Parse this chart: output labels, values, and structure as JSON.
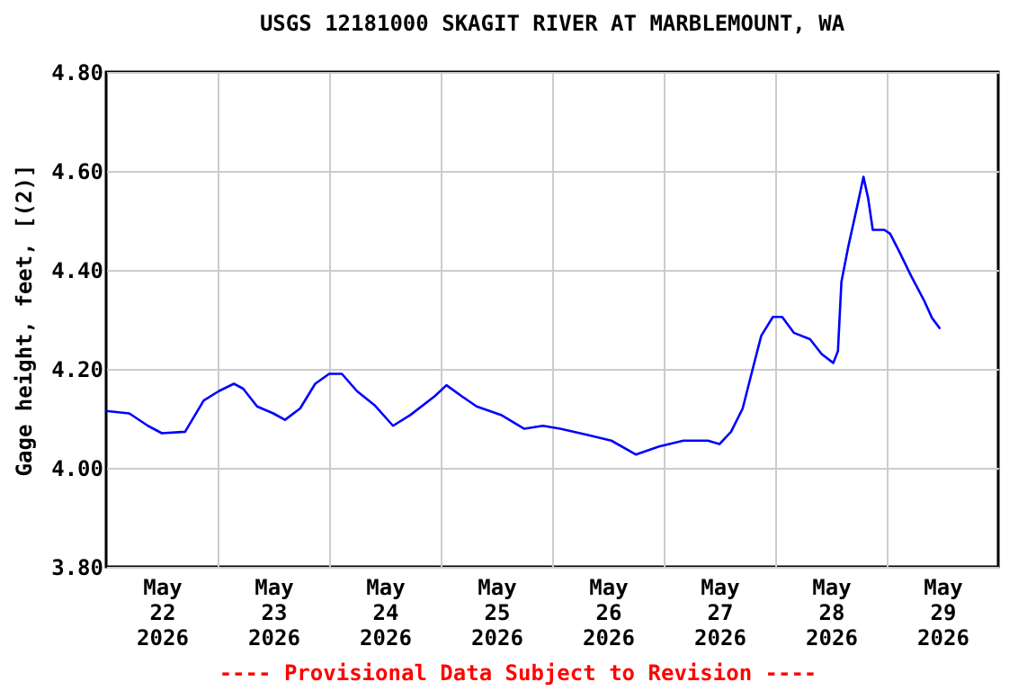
{
  "chart_data": {
    "type": "line",
    "title": "USGS 12181000 SKAGIT RIVER AT MARBLEMOUNT, WA",
    "ylabel": "Gage height, feet, [(2)]",
    "annotations": [
      "---- Provisional Data Subject to Revision ----"
    ],
    "xlim": [
      "2026-05-22T00:00",
      "2026-05-30T00:00"
    ],
    "xticks": [
      {
        "value": "2026-05-22T12:00",
        "label": "May 22 2026"
      },
      {
        "value": "2026-05-23T12:00",
        "label": "May 23 2026"
      },
      {
        "value": "2026-05-24T12:00",
        "label": "May 24 2026"
      },
      {
        "value": "2026-05-25T12:00",
        "label": "May 25 2026"
      },
      {
        "value": "2026-05-26T12:00",
        "label": "May 26 2026"
      },
      {
        "value": "2026-05-27T12:00",
        "label": "May 27 2026"
      },
      {
        "value": "2026-05-28T12:00",
        "label": "May 28 2026"
      },
      {
        "value": "2026-05-29T12:00",
        "label": "May 29 2026"
      },
      {
        "value": "2026-05-23T00:00",
        "label": null
      },
      {
        "value": "2026-05-24T00:00",
        "label": null
      },
      {
        "value": "2026-05-25T00:00",
        "label": null
      },
      {
        "value": "2026-05-26T00:00",
        "label": null
      },
      {
        "value": "2026-05-27T00:00",
        "label": null
      },
      {
        "value": "2026-05-28T00:00",
        "label": null
      },
      {
        "value": "2026-05-29T00:00",
        "label": null
      }
    ],
    "ylim": [
      3.8,
      4.8
    ],
    "yticks": [
      {
        "value": 3.8,
        "label": "3.80"
      },
      {
        "value": 4.0,
        "label": "4.00"
      },
      {
        "value": 4.2,
        "label": "4.20"
      },
      {
        "value": 4.4,
        "label": "4.40"
      },
      {
        "value": 4.6,
        "label": "4.60"
      },
      {
        "value": 4.8,
        "label": "4.80"
      }
    ],
    "grid": true,
    "marker": "none",
    "line_style": "solid",
    "series": [
      {
        "color": "#0000ff",
        "x": [
          "2026-05-22T00:00",
          "2026-05-22T05:00",
          "2026-05-22T09:00",
          "2026-05-22T12:00",
          "2026-05-22T17:00",
          "2026-05-22T21:00",
          "2026-05-23T00:15",
          "2026-05-23T03:30",
          "2026-05-23T05:30",
          "2026-05-23T08:30",
          "2026-05-23T12:00",
          "2026-05-23T14:30",
          "2026-05-23T17:45",
          "2026-05-23T21:00",
          "2026-05-24T00:00",
          "2026-05-24T02:45",
          "2026-05-24T06:00",
          "2026-05-24T09:45",
          "2026-05-24T13:45",
          "2026-05-24T17:30",
          "2026-05-24T22:45",
          "2026-05-25T01:15",
          "2026-05-25T04:30",
          "2026-05-25T07:45",
          "2026-05-25T13:00",
          "2026-05-25T18:00",
          "2026-05-25T22:00",
          "2026-05-26T01:45",
          "2026-05-26T07:30",
          "2026-05-26T12:45",
          "2026-05-26T18:00",
          "2026-05-26T23:00",
          "2026-05-27T04:15",
          "2026-05-27T09:30",
          "2026-05-27T12:00",
          "2026-05-27T14:30",
          "2026-05-27T17:00",
          "2026-05-27T19:00",
          "2026-05-27T21:00",
          "2026-05-27T23:30",
          "2026-05-28T01:30",
          "2026-05-28T04:00",
          "2026-05-28T07:30",
          "2026-05-28T10:00",
          "2026-05-28T12:30",
          "2026-05-28T13:30",
          "2026-05-28T14:15",
          "2026-05-28T15:45",
          "2026-05-28T17:45",
          "2026-05-28T19:00",
          "2026-05-28T20:00",
          "2026-05-28T21:00",
          "2026-05-28T23:30",
          "2026-05-29T00:45",
          "2026-05-29T02:45",
          "2026-05-29T05:15",
          "2026-05-29T08:00",
          "2026-05-29T09:45",
          "2026-05-29T11:30"
        ],
        "values": [
          4.115,
          4.11,
          4.085,
          4.07,
          4.073,
          4.136,
          4.155,
          4.17,
          4.16,
          4.124,
          4.11,
          4.097,
          4.12,
          4.17,
          4.19,
          4.19,
          4.155,
          4.127,
          4.085,
          4.107,
          4.145,
          4.167,
          4.145,
          4.124,
          4.107,
          4.079,
          4.085,
          4.079,
          4.067,
          4.055,
          4.027,
          4.043,
          4.055,
          4.055,
          4.048,
          4.073,
          4.12,
          4.194,
          4.267,
          4.305,
          4.305,
          4.273,
          4.26,
          4.23,
          4.212,
          4.236,
          4.376,
          4.448,
          4.533,
          4.588,
          4.545,
          4.481,
          4.481,
          4.473,
          4.436,
          4.388,
          4.339,
          4.303,
          4.281
        ]
      }
    ]
  }
}
